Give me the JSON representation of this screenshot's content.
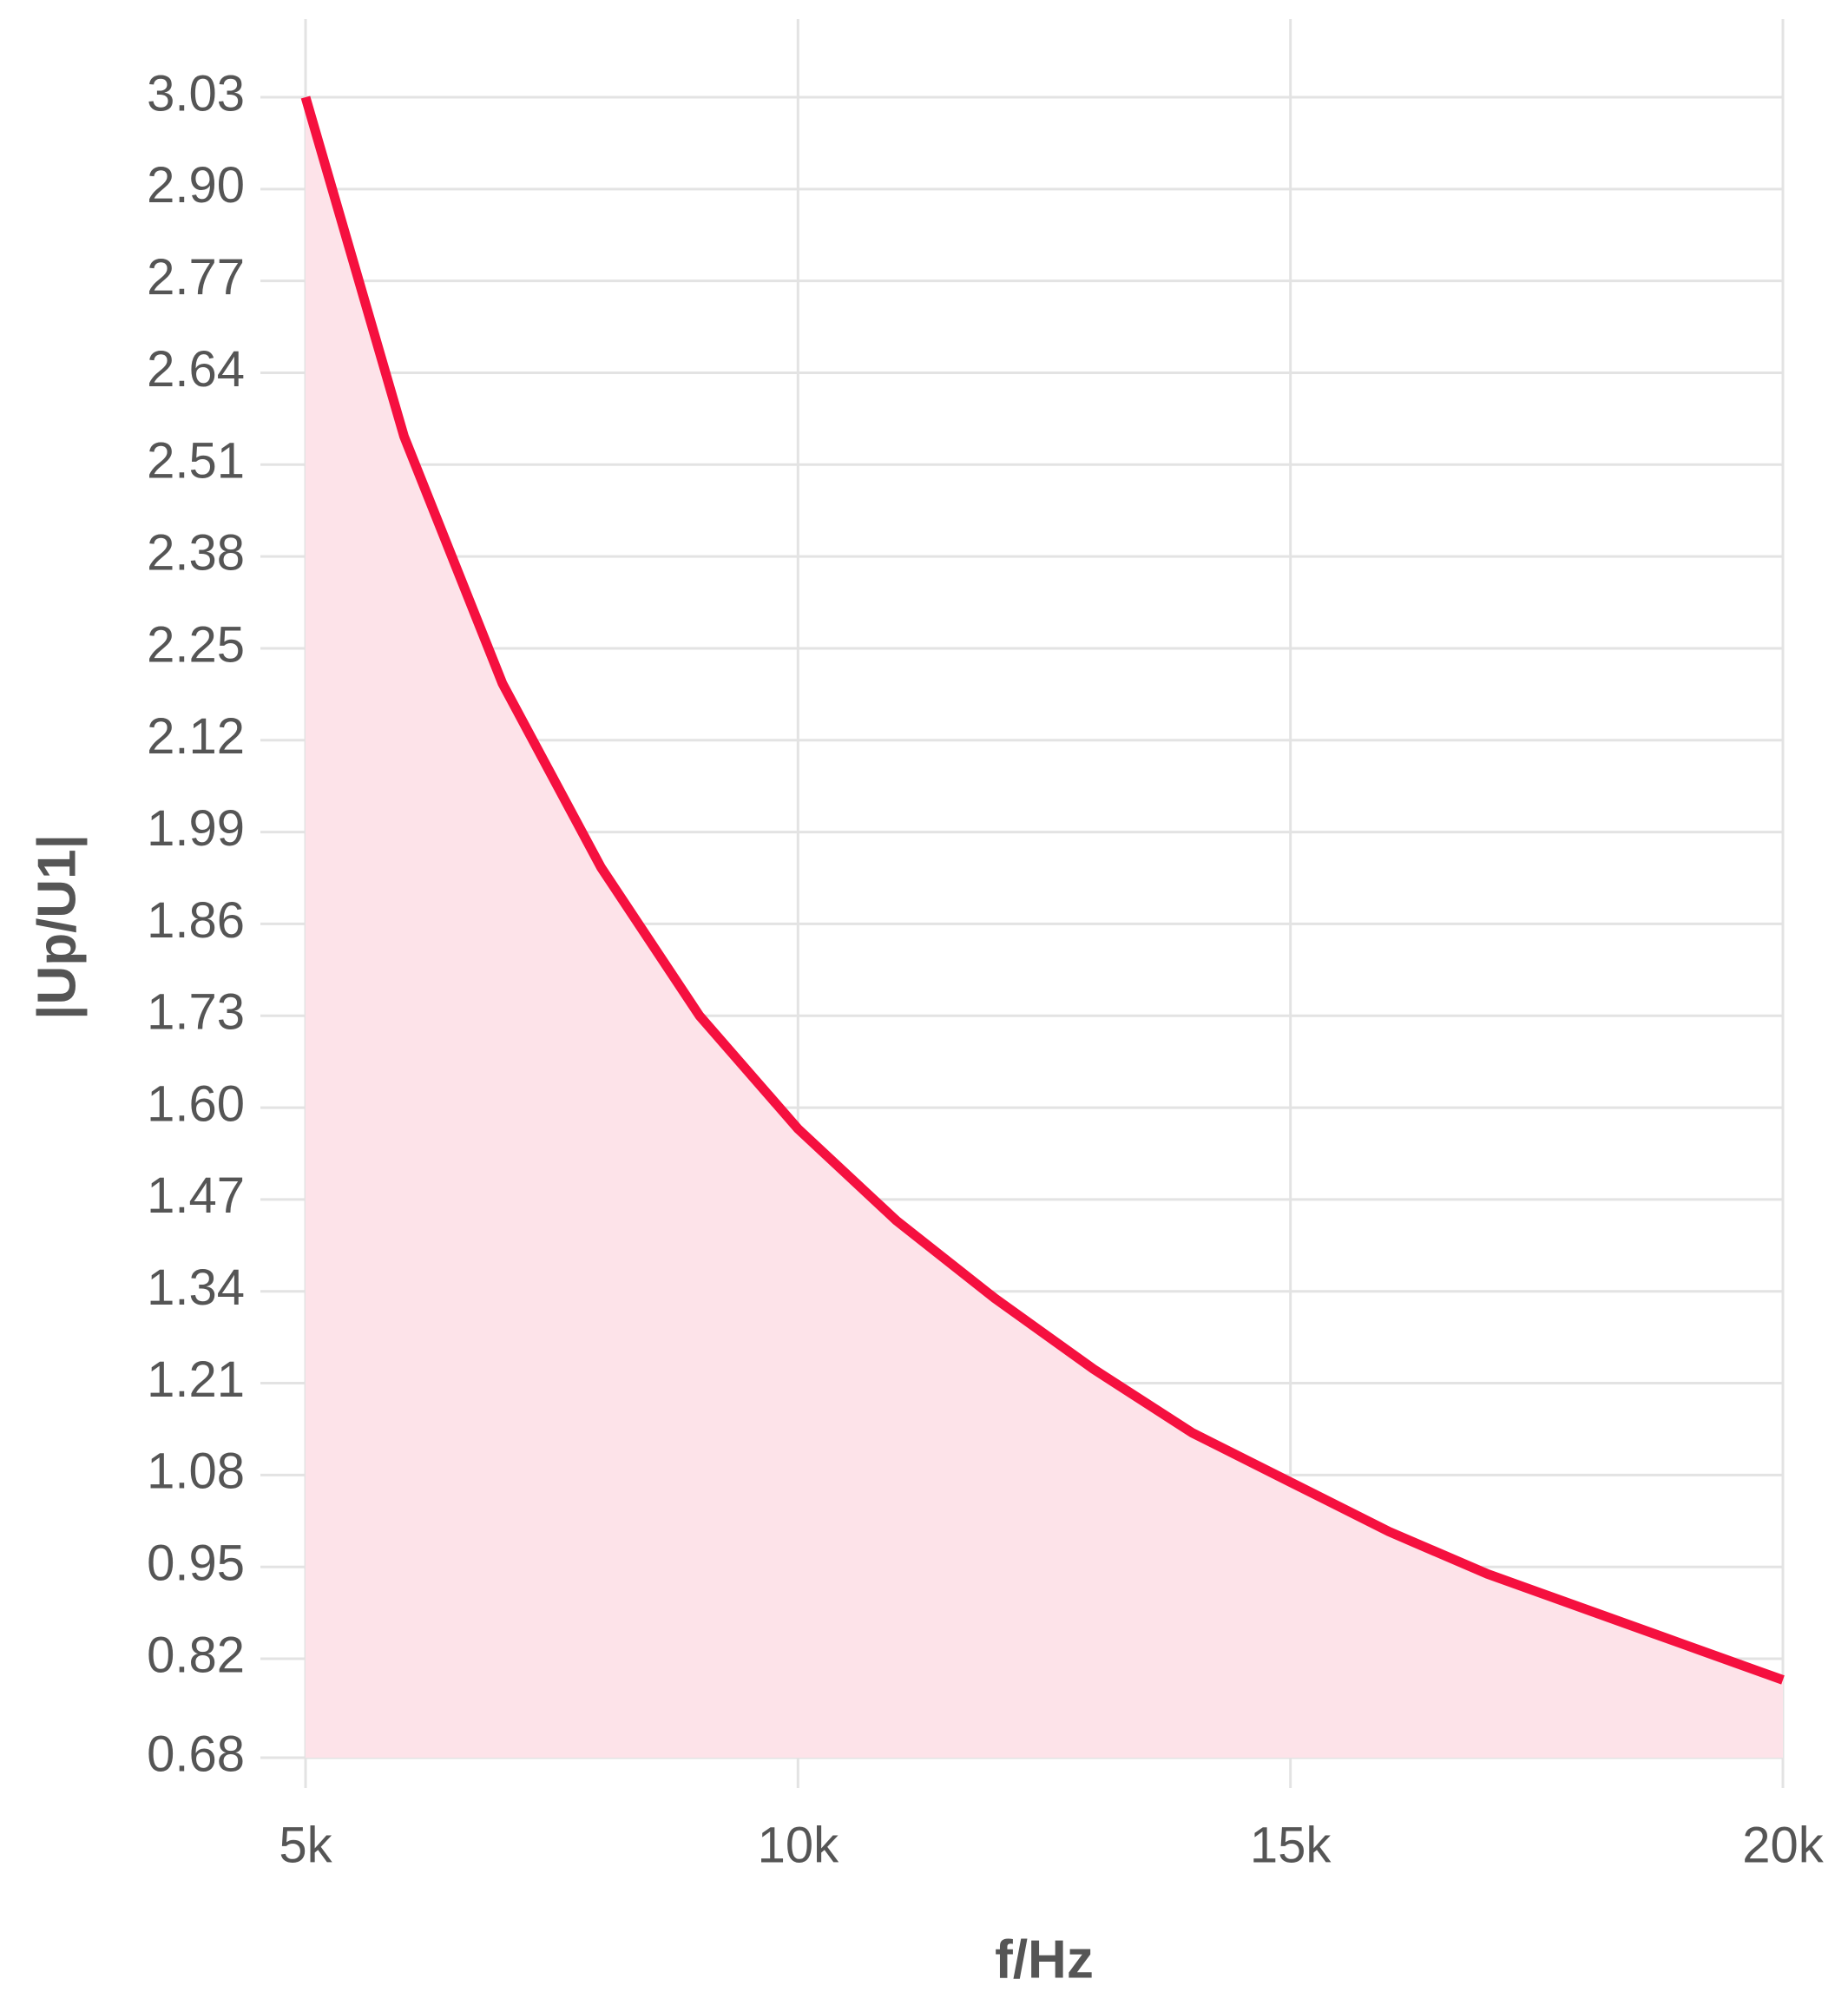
{
  "chart_data": {
    "type": "area",
    "x_label": "f/Hz",
    "y_label": "|Up/U1|",
    "x": [
      5000,
      6000,
      7000,
      8000,
      9000,
      10000,
      11000,
      12000,
      13000,
      14000,
      15000,
      16000,
      17000,
      18000,
      19000,
      20000
    ],
    "series": [
      {
        "color": "#f5103f",
        "fill": "#fde3e9",
        "values": [
          3.03,
          2.55,
          2.2,
          1.94,
          1.73,
          1.57,
          1.44,
          1.33,
          1.23,
          1.14,
          1.07,
          1.0,
          0.94,
          0.89,
          0.84,
          0.79
        ]
      }
    ],
    "xlim": [
      5000,
      20000
    ],
    "xticks": [
      {
        "value": 5000,
        "label": "5k"
      },
      {
        "value": 10000,
        "label": "10k"
      },
      {
        "value": 15000,
        "label": "15k"
      },
      {
        "value": 20000,
        "label": "20k"
      }
    ],
    "ylim": [
      0.68,
      3.03
    ],
    "yticks": [
      3.03,
      {
        "value": 2.9,
        "label": "2.90"
      },
      2.77,
      2.64,
      2.51,
      2.38,
      2.25,
      2.12,
      1.99,
      1.86,
      1.73,
      {
        "value": 1.6,
        "label": "1.60"
      },
      1.47,
      1.34,
      1.21,
      1.08,
      0.95,
      0.82,
      0.68
    ],
    "grid": true
  }
}
